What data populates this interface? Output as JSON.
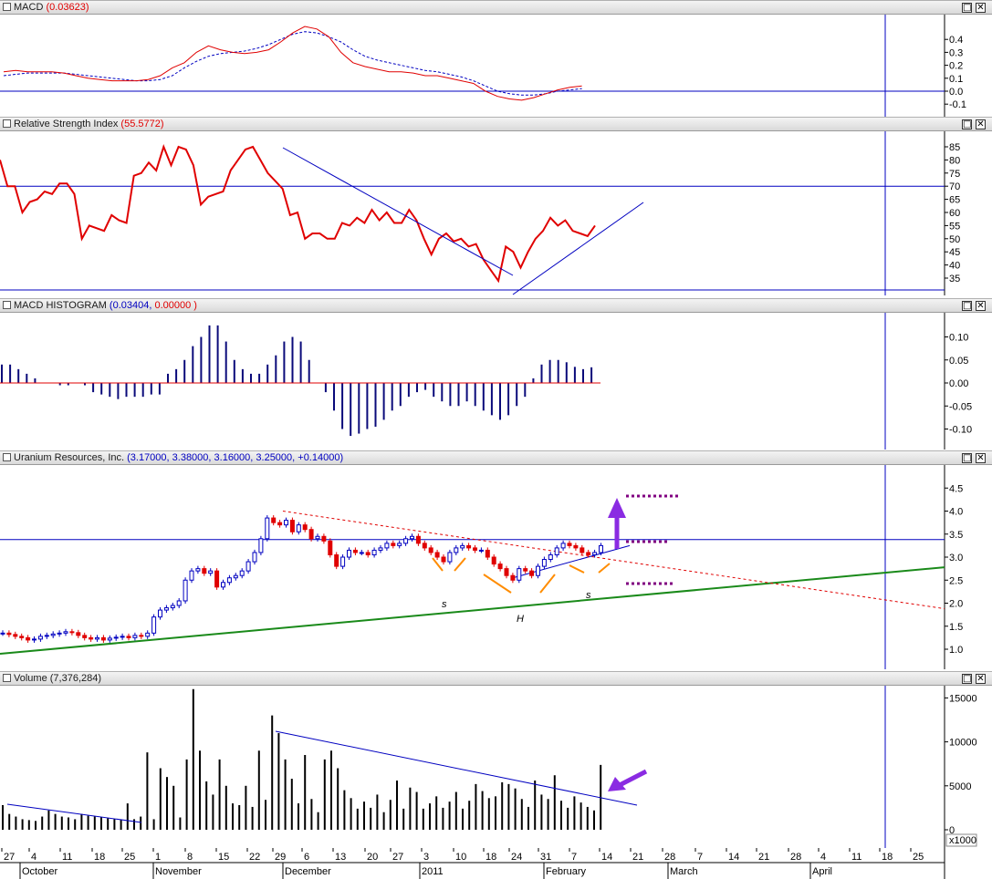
{
  "panels": {
    "macd": {
      "name": "MACD",
      "value": "(0.03623)",
      "ticks": [
        "0.4",
        "0.3",
        "0.2",
        "0.1",
        "0.0",
        "-0.1"
      ]
    },
    "rsi": {
      "name": "Relative Strength Index",
      "value": "(55.5772)",
      "ticks": [
        "85",
        "80",
        "75",
        "70",
        "65",
        "60",
        "55",
        "50",
        "45",
        "40",
        "35"
      ]
    },
    "hist": {
      "name": "MACD HISTOGRAM",
      "value_a": "(0.03404,",
      "value_b": "0.00000",
      "close": ")",
      "ticks": [
        "0.10",
        "0.05",
        "0.00",
        "-0.05",
        "-0.10"
      ]
    },
    "price": {
      "name": "Uranium Resources, Inc.",
      "values": "(3.17000, 3.38000, 3.16000, 3.25000, +0.14000)",
      "ticks": [
        "4.5",
        "4.0",
        "3.5",
        "3.0",
        "2.5",
        "2.0",
        "1.5",
        "1.0"
      ],
      "annotations": {
        "left_shoulder": "s",
        "head": "H",
        "right_shoulder": "s"
      }
    },
    "volume": {
      "name": "Volume",
      "value": "(7,376,284)",
      "ticks": [
        "15000",
        "10000",
        "5000",
        "0"
      ],
      "multiplier": "x1000"
    }
  },
  "window_buttons": {
    "restore": "□",
    "close": "✕"
  },
  "date_axis": {
    "days": [
      "27",
      "4",
      "11",
      "18",
      "25",
      "1",
      "8",
      "15",
      "22",
      "29",
      "6",
      "13",
      "20",
      "27",
      "3",
      "10",
      "18",
      "24",
      "31",
      "7",
      "14",
      "21",
      "28",
      "7",
      "14",
      "21",
      "28",
      "4",
      "11",
      "18",
      "25"
    ],
    "months": [
      "October",
      "November",
      "December",
      "2011",
      "February",
      "March",
      "April"
    ]
  },
  "colors": {
    "rsi_line": "#e00000",
    "macd_line": "#e00000",
    "signal_line": "#0000c0",
    "support_line": "#1a8a1a",
    "arrow": "#8a2be2",
    "shoulder_marks": "#ff8c00",
    "target_dots": "#800080",
    "candle_up": "#0000c0",
    "candle_down": "#e00000",
    "cursor_line": "#0000c0"
  },
  "chart_data": {
    "type": "line",
    "title": "Uranium Resources, Inc.",
    "ohlc_last": {
      "open": 3.17,
      "high": 3.38,
      "low": 3.16,
      "close": 3.25,
      "change": 0.14
    },
    "macd_last": 0.03623,
    "rsi_last": 55.5772,
    "hist_last": [
      0.03404,
      0.0
    ],
    "volume_last": 7376284,
    "close_series": [
      1.35,
      1.32,
      1.28,
      1.25,
      1.2,
      1.22,
      1.28,
      1.3,
      1.33,
      1.35,
      1.38,
      1.36,
      1.3,
      1.25,
      1.22,
      1.25,
      1.2,
      1.24,
      1.26,
      1.28,
      1.25,
      1.3,
      1.28,
      1.35,
      1.7,
      1.85,
      1.9,
      1.95,
      2.05,
      2.5,
      2.7,
      2.75,
      2.65,
      2.7,
      2.35,
      2.45,
      2.55,
      2.6,
      2.7,
      2.9,
      3.1,
      3.4,
      3.85,
      3.75,
      3.7,
      3.8,
      3.55,
      3.7,
      3.6,
      3.4,
      3.45,
      3.35,
      3.05,
      2.8,
      3.0,
      3.15,
      3.1,
      3.1,
      3.05,
      3.15,
      3.2,
      3.3,
      3.25,
      3.3,
      3.4,
      3.45,
      3.3,
      3.2,
      3.1,
      3.0,
      2.9,
      3.1,
      3.2,
      3.25,
      3.2,
      3.15,
      3.15,
      3.0,
      2.85,
      2.75,
      2.6,
      2.5,
      2.75,
      2.7,
      2.6,
      2.8,
      2.95,
      3.05,
      3.2,
      3.3,
      3.25,
      3.2,
      3.1,
      3.05,
      3.1,
      3.25
    ],
    "rsi_series": [
      80,
      70,
      70,
      60,
      64,
      65,
      68,
      67,
      71,
      71,
      67,
      50,
      55,
      54,
      53,
      59,
      57,
      56,
      74,
      75,
      79,
      76,
      85,
      78,
      85,
      84,
      78,
      63,
      66,
      67,
      68,
      76,
      80,
      84,
      85,
      80,
      75,
      72,
      69,
      59,
      60,
      50,
      52,
      52,
      50,
      50,
      56,
      55,
      58,
      56,
      61,
      57,
      60,
      56,
      56,
      61,
      57,
      50,
      44,
      50,
      52,
      49,
      50,
      47,
      48,
      42,
      38,
      34,
      47,
      45,
      39,
      45,
      50,
      53,
      58,
      55,
      57,
      53,
      52,
      51,
      55
    ],
    "macd_series": [
      0.15,
      0.16,
      0.15,
      0.15,
      0.15,
      0.14,
      0.12,
      0.1,
      0.09,
      0.08,
      0.08,
      0.08,
      0.09,
      0.12,
      0.18,
      0.22,
      0.3,
      0.35,
      0.32,
      0.3,
      0.29,
      0.3,
      0.32,
      0.38,
      0.45,
      0.5,
      0.48,
      0.42,
      0.3,
      0.22,
      0.19,
      0.17,
      0.15,
      0.15,
      0.14,
      0.12,
      0.12,
      0.1,
      0.08,
      0.06,
      0.0,
      -0.04,
      -0.06,
      -0.07,
      -0.05,
      -0.02,
      0.01,
      0.03,
      0.04
    ],
    "signal_series": [
      0.12,
      0.13,
      0.14,
      0.14,
      0.14,
      0.14,
      0.13,
      0.12,
      0.11,
      0.1,
      0.09,
      0.08,
      0.08,
      0.09,
      0.12,
      0.18,
      0.23,
      0.27,
      0.29,
      0.3,
      0.31,
      0.33,
      0.36,
      0.4,
      0.44,
      0.46,
      0.45,
      0.42,
      0.38,
      0.32,
      0.27,
      0.24,
      0.22,
      0.2,
      0.18,
      0.16,
      0.15,
      0.13,
      0.11,
      0.08,
      0.04,
      0.0,
      -0.02,
      -0.03,
      -0.03,
      -0.02,
      0.0,
      0.01,
      0.02
    ],
    "hist_series": [
      0.04,
      0.04,
      0.03,
      0.02,
      0.01,
      0.0,
      0.0,
      -0.005,
      -0.005,
      0.0,
      -0.005,
      -0.02,
      -0.025,
      -0.03,
      -0.035,
      -0.03,
      -0.03,
      -0.03,
      -0.025,
      -0.025,
      0.02,
      0.03,
      0.05,
      0.08,
      0.1,
      0.125,
      0.125,
      0.09,
      0.05,
      0.03,
      0.02,
      0.02,
      0.04,
      0.06,
      0.09,
      0.1,
      0.09,
      0.05,
      0.0,
      -0.02,
      -0.06,
      -0.1,
      -0.115,
      -0.11,
      -0.1,
      -0.095,
      -0.08,
      -0.06,
      -0.05,
      -0.03,
      -0.02,
      -0.015,
      -0.03,
      -0.04,
      -0.05,
      -0.05,
      -0.04,
      -0.05,
      -0.06,
      -0.07,
      -0.08,
      -0.07,
      -0.05,
      -0.03,
      0.01,
      0.04,
      0.05,
      0.05,
      0.045,
      0.035,
      0.03,
      0.034
    ],
    "volume_series": [
      2800,
      1800,
      1500,
      1200,
      1100,
      1000,
      1500,
      2200,
      1800,
      1500,
      1400,
      1200,
      1800,
      1600,
      1500,
      1400,
      1300,
      1200,
      1100,
      3000,
      1200,
      1500,
      8800,
      1200,
      7000,
      6000,
      5000,
      1400,
      8000,
      16000,
      9000,
      5500,
      4000,
      8000,
      5000,
      3000,
      2800,
      5000,
      2600,
      9000,
      3400,
      13000,
      11000,
      8000,
      5800,
      3000,
      8500,
      3500,
      2000,
      8000,
      9000,
      7000,
      4500,
      3600,
      2400,
      3200,
      2500,
      4000,
      2000,
      3400,
      5600,
      2400,
      4800,
      4300,
      2400,
      3000,
      3800,
      2500,
      3200,
      4300,
      2400,
      3300,
      5200,
      4400,
      3600,
      3800,
      5400,
      5200,
      4700,
      3500,
      2600,
      5600,
      4000,
      3500,
      6200,
      3300,
      2500,
      3800,
      3100,
      2600,
      2200,
      7376
    ]
  }
}
